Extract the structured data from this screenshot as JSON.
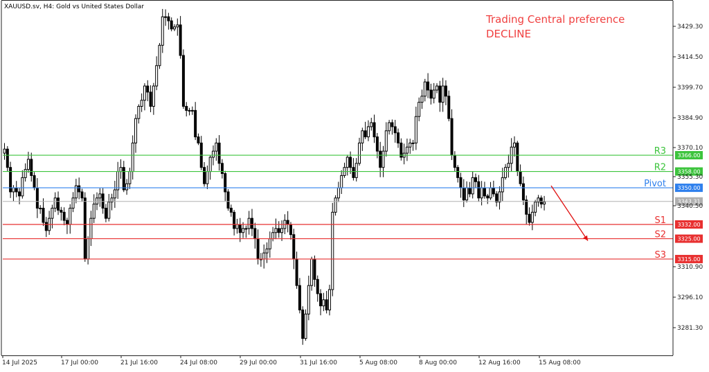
{
  "chart_data": {
    "type": "candlestick",
    "symbol": "XAUUSD.sv, H4:  Gold vs United States Dollar",
    "preference": {
      "title": "Trading Central preference",
      "value": "DECLINE",
      "color": "#f04040"
    },
    "ylim": [
      3266,
      3441
    ],
    "y_ticks": [
      "3429.30",
      "3414.50",
      "3399.70",
      "3384.90",
      "3370.10",
      "3355.30",
      "3340.50",
      "3310.90",
      "3296.10",
      "3281.30"
    ],
    "x_ticks": [
      "14 Jul 2025",
      "17 Jul 00:00",
      "21 Jul 16:00",
      "24 Jul 08:00",
      "29 Jul 00:00",
      "31 Jul 16:00",
      "5 Aug 08:00",
      "8 Aug 00:00",
      "12 Aug 16:00",
      "15 Aug 08:00"
    ],
    "current_price": {
      "value": 3343.31,
      "label": "3343.31",
      "color": "#b0b0b0"
    },
    "levels": [
      {
        "name": "R3",
        "value": 3366.0,
        "label": "3366.00",
        "color": "#3cc43c"
      },
      {
        "name": "R2",
        "value": 3358.0,
        "label": "3358.00",
        "color": "#3cc43c"
      },
      {
        "name": "Pivot",
        "value": 3350.0,
        "label": "3350.00",
        "color": "#2f80ed"
      },
      {
        "name": "S1",
        "value": 3332.0,
        "label": "3332.00",
        "color": "#e83030"
      },
      {
        "name": "S2",
        "value": 3325.0,
        "label": "3325.00",
        "color": "#e83030"
      },
      {
        "name": "S3",
        "value": 3315.0,
        "label": "3315.00",
        "color": "#e83030"
      }
    ],
    "forecast": {
      "from": 3351,
      "to": 3324,
      "color": "#e01010"
    },
    "closes": [
      3369,
      3360,
      3348,
      3350,
      3348,
      3346,
      3355,
      3359,
      3364,
      3356,
      3350,
      3340,
      3340,
      3333,
      3329,
      3335,
      3340,
      3345,
      3339,
      3338,
      3334,
      3332,
      3340,
      3345,
      3351,
      3348,
      3345,
      3315,
      3325,
      3335,
      3342,
      3345,
      3347,
      3340,
      3335,
      3343,
      3345,
      3349,
      3358,
      3360,
      3349,
      3352,
      3358,
      3372,
      3384,
      3390,
      3393,
      3400,
      3397,
      3390,
      3400,
      3410,
      3420,
      3434,
      3434,
      3432,
      3428,
      3429,
      3430,
      3415,
      3390,
      3388,
      3388,
      3388,
      3375,
      3372,
      3360,
      3352,
      3358,
      3365,
      3368,
      3372,
      3362,
      3357,
      3348,
      3340,
      3338,
      3330,
      3332,
      3328,
      3330,
      3330,
      3335,
      3330,
      3325,
      3315,
      3315,
      3318,
      3320,
      3325,
      3328,
      3330,
      3328,
      3330,
      3334,
      3332,
      3327,
      3315,
      3302,
      3290,
      3276,
      3288,
      3302,
      3315,
      3305,
      3298,
      3292,
      3295,
      3290,
      3300,
      3338,
      3345,
      3350,
      3356,
      3360,
      3365,
      3360,
      3355,
      3362,
      3372,
      3378,
      3375,
      3380,
      3382,
      3375,
      3368,
      3360,
      3368,
      3378,
      3382,
      3380,
      3377,
      3372,
      3365,
      3367,
      3370,
      3372,
      3372,
      3385,
      3392,
      3395,
      3402,
      3398,
      3394,
      3398,
      3400,
      3392,
      3400,
      3395,
      3384,
      3366,
      3360,
      3355,
      3350,
      3344,
      3350,
      3347,
      3355,
      3353,
      3345,
      3350,
      3346,
      3345,
      3350,
      3347,
      3343,
      3348,
      3355,
      3360,
      3362,
      3370,
      3372,
      3358,
      3352,
      3344,
      3337,
      3333,
      3338,
      3343,
      3345,
      3342,
      3343
    ]
  }
}
